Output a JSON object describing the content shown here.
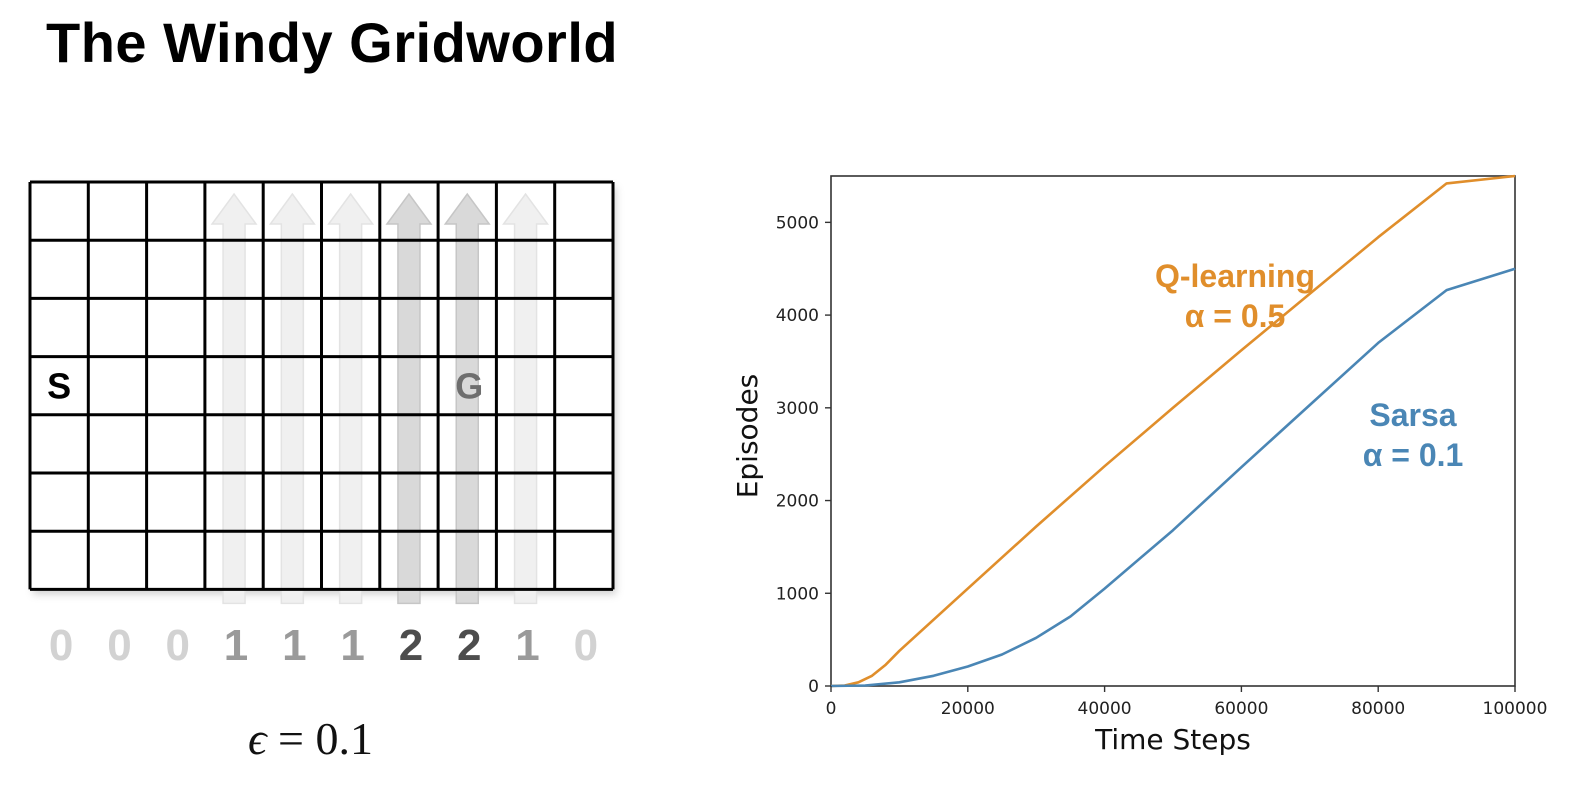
{
  "slide": {
    "title": "The Windy Gridworld"
  },
  "gridworld": {
    "columns": 10,
    "rows": 7,
    "start_label": "S",
    "goal_label": "G",
    "start_cell": {
      "row": 3,
      "col": 0
    },
    "goal_cell": {
      "row": 3,
      "col": 7
    },
    "wind_strengths": [
      "0",
      "0",
      "0",
      "1",
      "1",
      "1",
      "2",
      "2",
      "1",
      "0"
    ],
    "epsilon": {
      "symbol": "ϵ",
      "equals": " = ",
      "value": "0.1"
    }
  },
  "chart_data": {
    "type": "line",
    "xlabel": "Time Steps",
    "ylabel": "Episodes",
    "xlim": [
      0,
      100000
    ],
    "ylim": [
      0,
      5500
    ],
    "xticks": [
      0,
      20000,
      40000,
      60000,
      80000,
      100000
    ],
    "yticks": [
      0,
      1000,
      2000,
      3000,
      4000,
      5000
    ],
    "grid": false,
    "series": [
      {
        "name": "Q-learning",
        "annotation_lines": [
          "Q-learning",
          "α = 0.5"
        ],
        "color": "#e08e2b",
        "x": [
          0,
          2000,
          4000,
          6000,
          8000,
          10000,
          20000,
          30000,
          40000,
          50000,
          60000,
          70000,
          80000,
          90000,
          100000
        ],
        "y": [
          0,
          5,
          40,
          110,
          230,
          380,
          1050,
          1720,
          2370,
          3000,
          3620,
          4230,
          4840,
          5420,
          5510
        ]
      },
      {
        "name": "Sarsa",
        "annotation_lines": [
          "Sarsa",
          "α = 0.1"
        ],
        "color": "#4a86b5",
        "x": [
          0,
          5000,
          10000,
          15000,
          20000,
          25000,
          30000,
          35000,
          40000,
          50000,
          60000,
          70000,
          80000,
          90000,
          100000
        ],
        "y": [
          0,
          5,
          40,
          110,
          210,
          340,
          520,
          750,
          1050,
          1680,
          2360,
          3030,
          3700,
          4270,
          4500
        ]
      }
    ]
  }
}
